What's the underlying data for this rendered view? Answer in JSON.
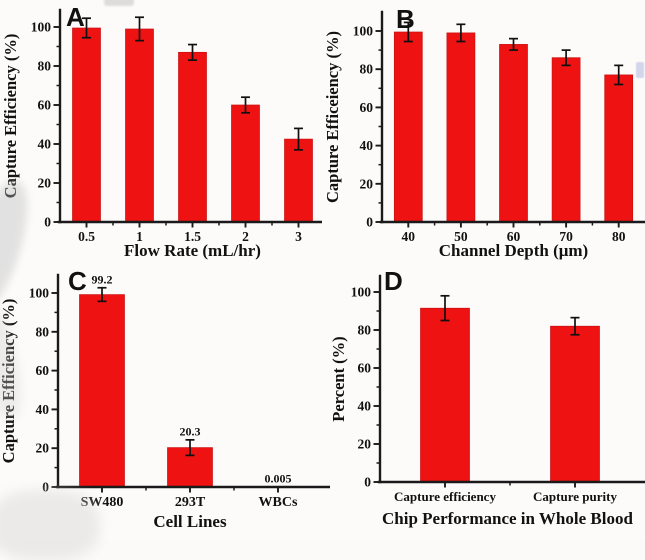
{
  "figure": {
    "description_visible_text_only": true,
    "bar_color": "#ee1212",
    "axis_color": "#1a1a1a",
    "panels": [
      {
        "label": "A"
      },
      {
        "label": "B"
      },
      {
        "label": "C"
      },
      {
        "label": "D"
      }
    ]
  },
  "chart_data": [
    {
      "type": "bar",
      "panel_label": "A",
      "xlabel": "Flow Rate (mL/hr)",
      "ylabel": "Capture Efficiency (%)",
      "categories": [
        "0.5",
        "1",
        "1.5",
        "2",
        "3"
      ],
      "values": [
        99.5,
        99,
        87,
        60,
        42.5
      ],
      "errors": [
        5,
        6,
        4,
        4,
        5.5
      ],
      "ylim": [
        0,
        110
      ],
      "yticks": [
        0,
        20,
        40,
        60,
        80,
        100
      ],
      "minor_tick_step": 10,
      "grid": false,
      "legend": null,
      "bar_color": "#ee1212"
    },
    {
      "type": "bar",
      "panel_label": "B",
      "xlabel": "Channel Depth (μm)",
      "ylabel": "Capture Efficeiency (%)",
      "categories": [
        "40",
        "50",
        "60",
        "70",
        "80"
      ],
      "values": [
        99.5,
        99,
        93,
        86,
        77
      ],
      "errors": [
        5,
        4.5,
        3,
        4,
        5
      ],
      "ylim": [
        0,
        110
      ],
      "yticks": [
        0,
        20,
        40,
        60,
        80,
        100
      ],
      "minor_tick_step": 10,
      "grid": false,
      "legend": null,
      "bar_color": "#ee1212"
    },
    {
      "type": "bar",
      "panel_label": "C",
      "xlabel": "Cell Lines",
      "ylabel": "Capture Efficiency (%)",
      "categories": [
        "SW480",
        "293T",
        "WBCs"
      ],
      "values": [
        99.2,
        20.3,
        0.005
      ],
      "errors": [
        3.5,
        4,
        0
      ],
      "value_labels": [
        "99.2",
        "20.3",
        "0.005"
      ],
      "ylim": [
        0,
        110
      ],
      "yticks": [
        0,
        20,
        40,
        60,
        80,
        100
      ],
      "minor_tick_step": 10,
      "grid": false,
      "legend": null,
      "bar_color": "#ee1212"
    },
    {
      "type": "bar",
      "panel_label": "D",
      "xlabel": "Chip Performance in Whole Blood",
      "ylabel": "Percent (%)",
      "categories": [
        "Capture efficiency",
        "Capture purity"
      ],
      "values": [
        91.5,
        82
      ],
      "errors": [
        6.5,
        4.5
      ],
      "ylim": [
        0,
        110
      ],
      "yticks": [
        0,
        20,
        40,
        60,
        80,
        100
      ],
      "minor_tick_step": 10,
      "grid": false,
      "legend": null,
      "bar_color": "#ee1212"
    }
  ]
}
